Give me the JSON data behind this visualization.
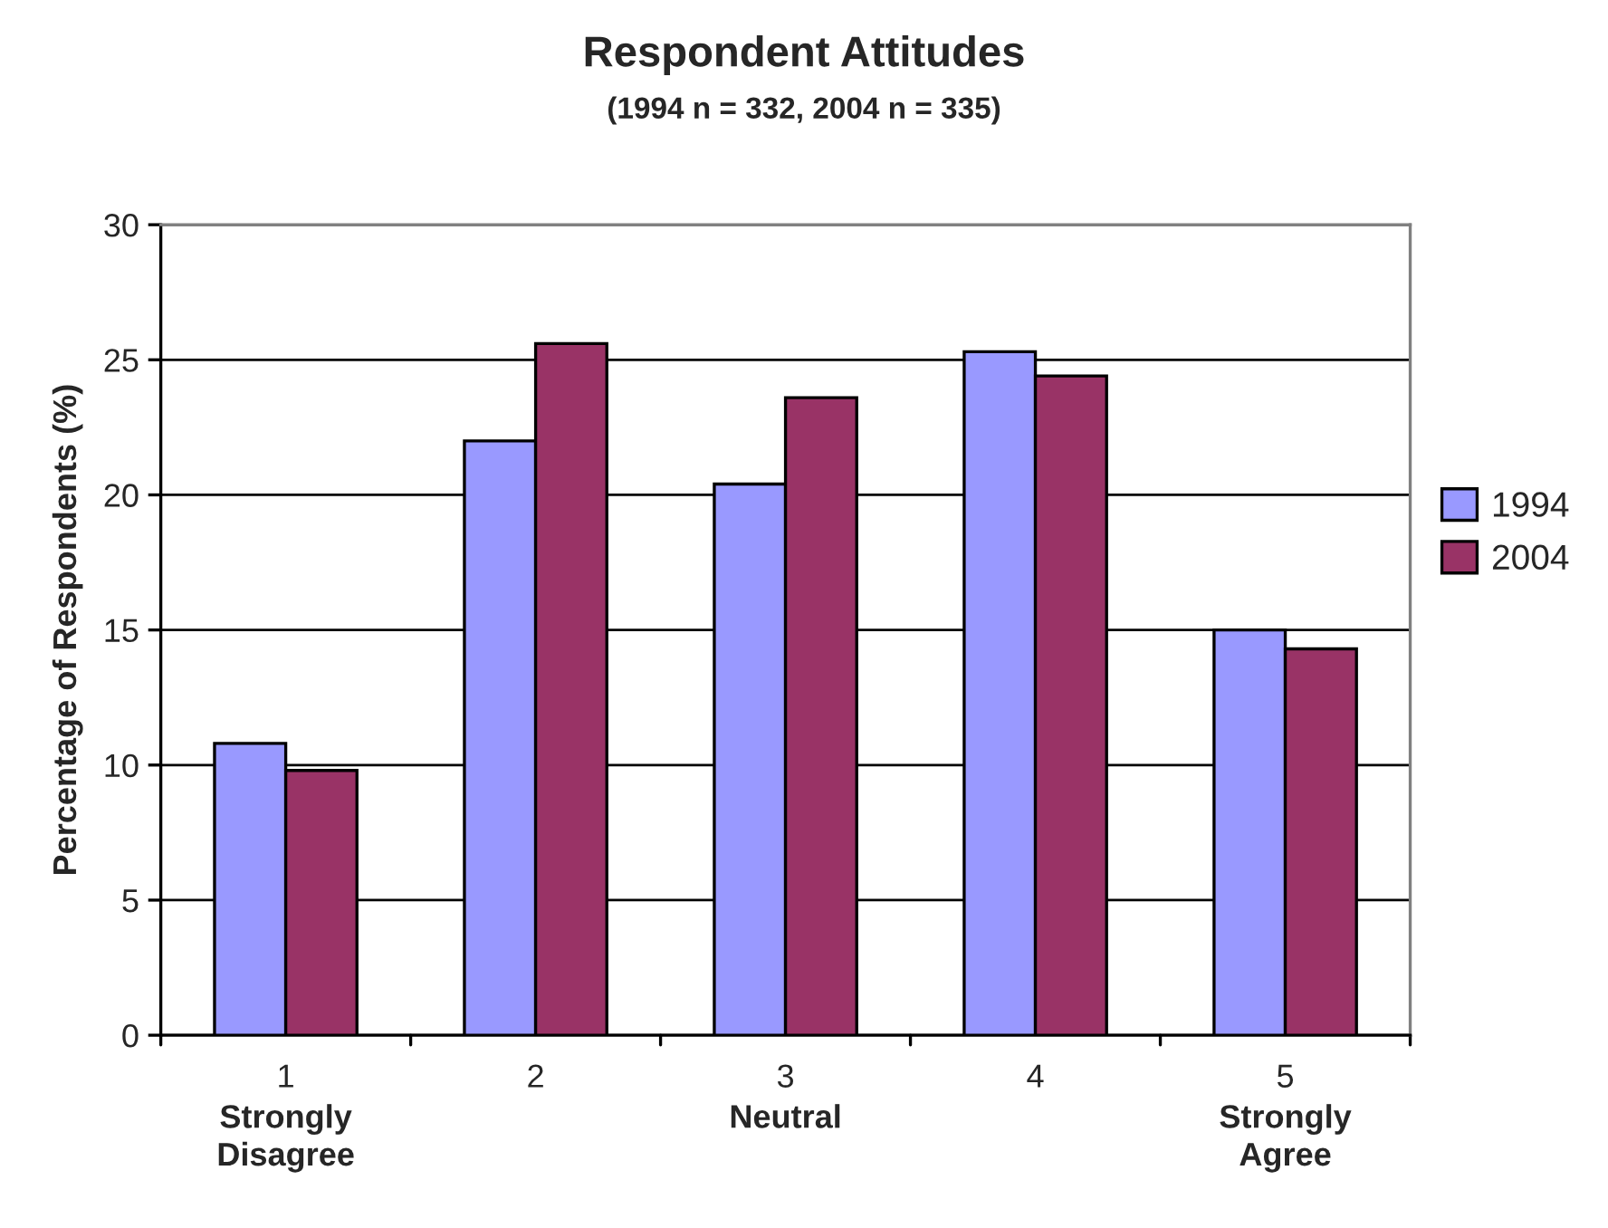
{
  "chart_data": {
    "type": "bar",
    "title": "Respondent Attitudes",
    "subtitle": "(1994 n = 332, 2004 n = 335)",
    "ylabel": "Percentage of Respondents (%)",
    "categories": [
      "1\nStrongly\nDisagree",
      "2",
      "3\nNeutral",
      "4",
      "5\nStrongly\nAgree"
    ],
    "series": [
      {
        "name": "1994",
        "color": "#9999ff",
        "values": [
          10.8,
          22.0,
          20.4,
          25.3,
          15.0
        ]
      },
      {
        "name": "2004",
        "color": "#993366",
        "values": [
          9.8,
          25.6,
          23.6,
          24.4,
          14.3
        ]
      }
    ],
    "ylim": [
      0,
      30
    ],
    "yticks": [
      0,
      5,
      10,
      15,
      20,
      25,
      30
    ],
    "grid": "y",
    "legend": "right"
  }
}
